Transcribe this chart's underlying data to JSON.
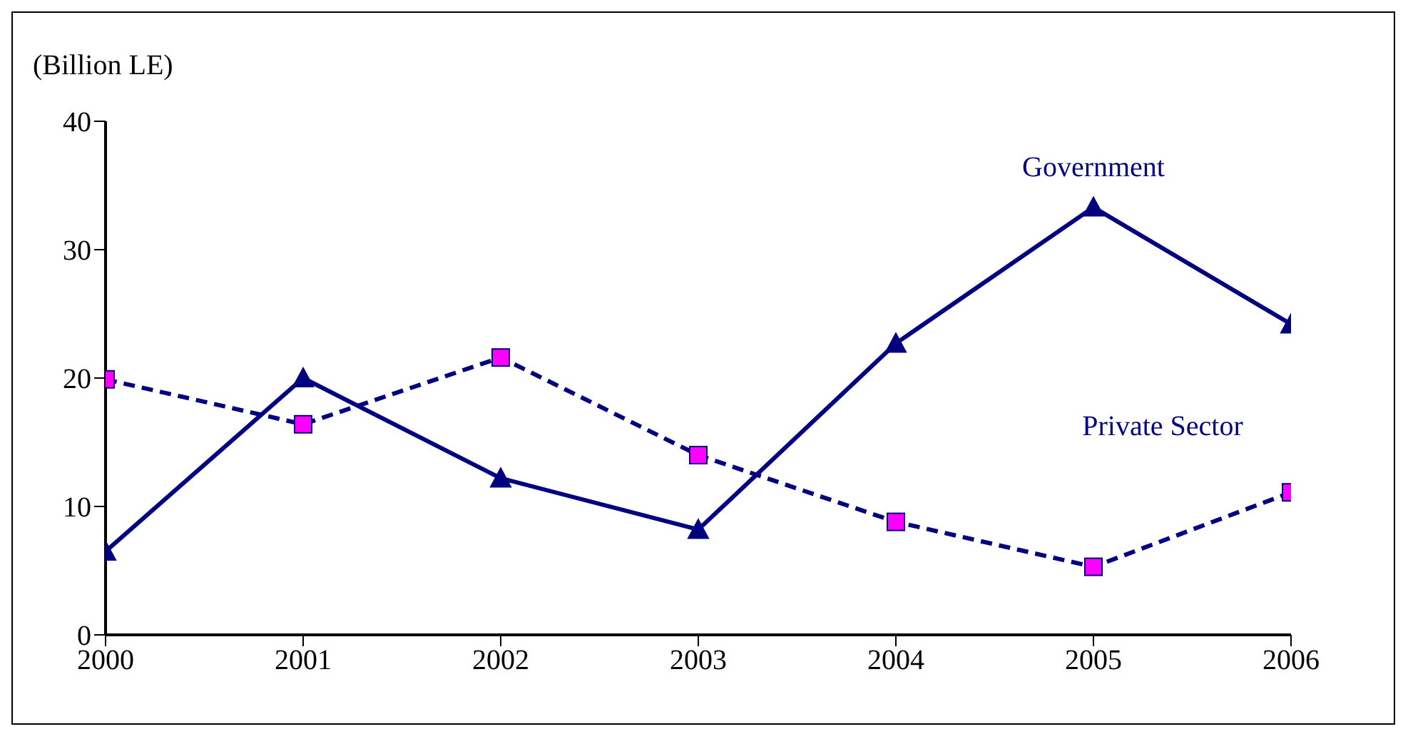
{
  "chart_data": {
    "type": "line",
    "ylabel": "(Billion LE)",
    "x": [
      2000,
      2001,
      2002,
      2003,
      2004,
      2005,
      2006
    ],
    "xlim": [
      2000,
      2006
    ],
    "xticks": [
      2000,
      2001,
      2002,
      2003,
      2004,
      2005,
      2006
    ],
    "ylim": [
      0,
      40
    ],
    "yticks": [
      0,
      10,
      20,
      30,
      40
    ],
    "grid": false,
    "legend": false,
    "series": [
      {
        "name": "Government",
        "color": "#000080",
        "marker": "triangle",
        "line_style": "solid",
        "values": [
          6.5,
          20,
          12.2,
          8.2,
          22.7,
          33.3,
          24.2
        ]
      },
      {
        "name": "Private Sector",
        "color": "#000080",
        "marker": "square",
        "line_style": "dashed",
        "values": [
          19.9,
          16.4,
          21.6,
          14.0,
          8.8,
          5.3,
          11.1
        ]
      }
    ]
  }
}
